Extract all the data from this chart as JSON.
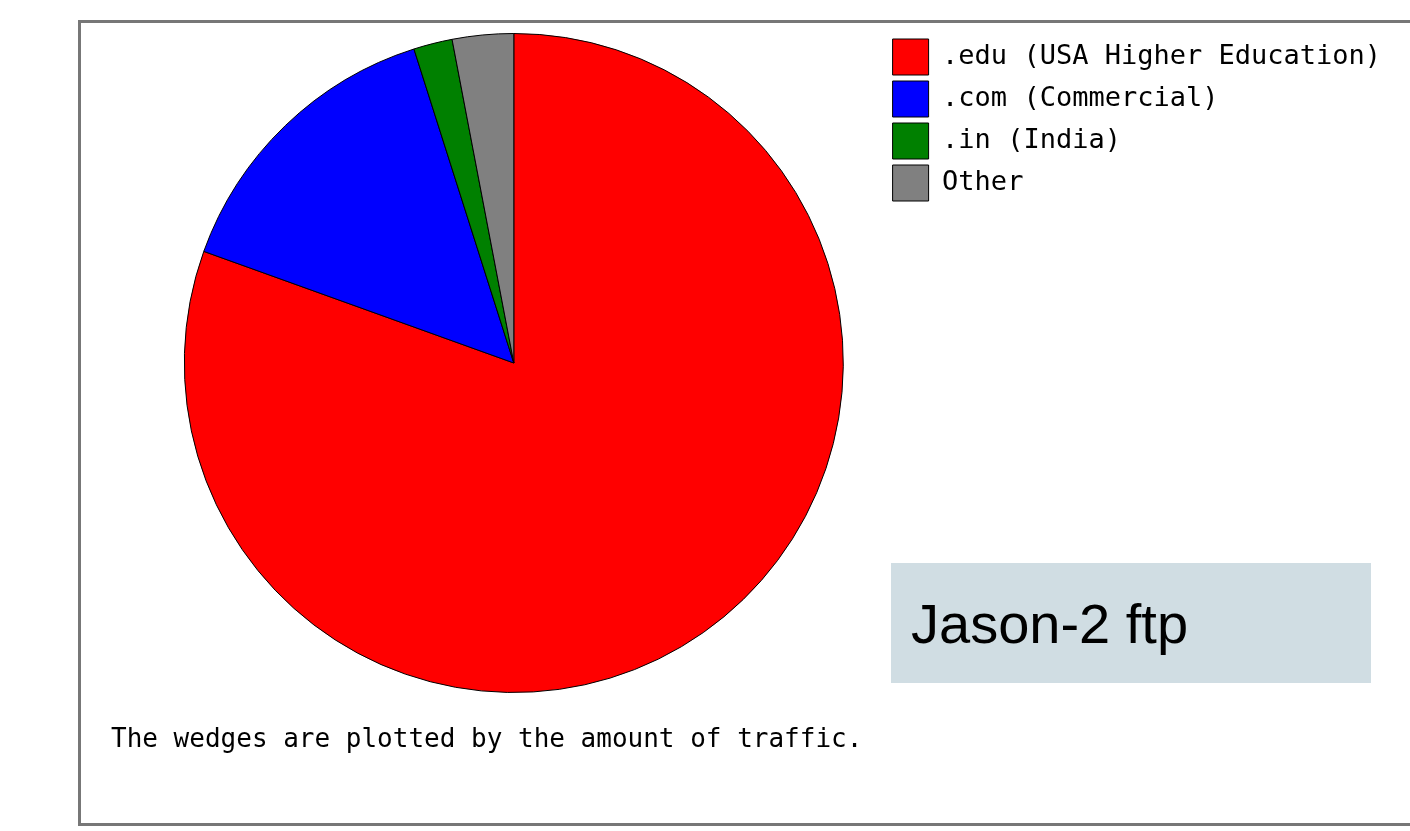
{
  "chart_data": {
    "type": "pie",
    "categories": [
      ".edu (USA Higher Education)",
      ".com (Commercial)",
      ".in (India)",
      "Other"
    ],
    "values": [
      80.5,
      14.6,
      1.9,
      3.0
    ],
    "colors": [
      "#ff0000",
      "#0000ff",
      "#008000",
      "#808080"
    ],
    "legend": "top right",
    "annotations": [
      "Jason-2 ftp",
      "The wedges are plotted by the amount of traffic."
    ]
  }
}
